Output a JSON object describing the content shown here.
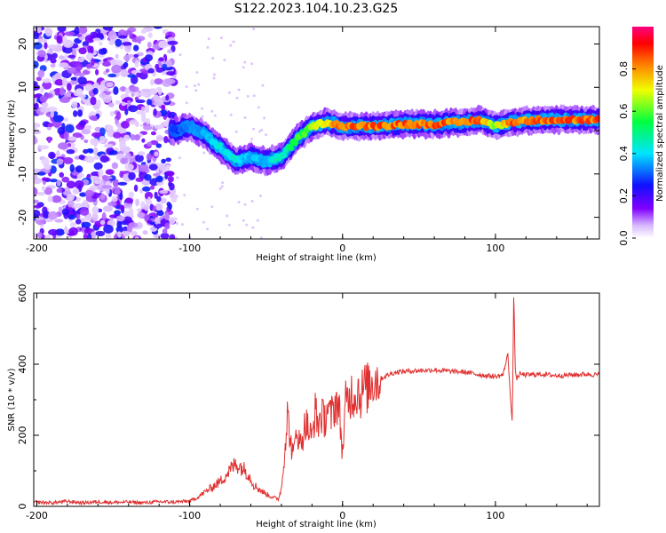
{
  "title": "S122.2023.104.10.23.G25",
  "chart_data": [
    {
      "type": "heatmap",
      "title": "S122.2023.104.10.23.G25",
      "xlabel": "Height of straight line (km)",
      "ylabel": "Frequency (Hz)",
      "xlim": [
        -202,
        168
      ],
      "ylim": [
        -25,
        24
      ],
      "xticks": [
        "-200",
        "-100",
        "0",
        "100"
      ],
      "xtick_values": [
        -200,
        -100,
        0,
        100
      ],
      "yticks": [
        "-20",
        "-10",
        "0",
        "10",
        "20"
      ],
      "ytick_values": [
        -20,
        -10,
        0,
        10,
        20
      ],
      "colorbar": {
        "label": "Normalized spectral amplitude",
        "range": [
          0,
          1
        ],
        "ticks": [
          "0.0",
          "0.2",
          "0.4",
          "0.6",
          "0.8"
        ],
        "tick_values": [
          0,
          0.2,
          0.4,
          0.6,
          0.8
        ],
        "colormap": "rainbow (white-violet-blue-cyan-green-yellow-red-pink)"
      },
      "noise_region_x": [
        -202,
        -110
      ],
      "ridge": {
        "x": [
          -110,
          -100,
          -90,
          -80,
          -70,
          -60,
          -50,
          -40,
          -30,
          -20,
          -10,
          0,
          20,
          40,
          60,
          80,
          90,
          100,
          110,
          130,
          150,
          168
        ],
        "y": [
          0,
          1,
          -1,
          -4,
          -7,
          -6,
          -7,
          -6,
          -2,
          1,
          2,
          1,
          1,
          1.5,
          1.5,
          2,
          2.5,
          1,
          2,
          2.5,
          2.5,
          2.5
        ],
        "amplitude": [
          0.3,
          0.35,
          0.4,
          0.45,
          0.45,
          0.4,
          0.4,
          0.5,
          0.6,
          0.7,
          0.8,
          0.9,
          0.9,
          0.9,
          0.9,
          0.9,
          0.9,
          0.7,
          0.9,
          0.9,
          0.9,
          0.9
        ]
      }
    },
    {
      "type": "line",
      "xlabel": "Height of straight line (km)",
      "ylabel": "SNR (10 * v/v)",
      "xlim": [
        -202,
        168
      ],
      "ylim": [
        0,
        600
      ],
      "xticks": [
        "-200",
        "-100",
        "0",
        "100"
      ],
      "xtick_values": [
        -200,
        -100,
        0,
        100
      ],
      "yticks": [
        "0",
        "200",
        "400",
        "600"
      ],
      "ytick_values": [
        0,
        200,
        400,
        600
      ],
      "color": "#e03030",
      "series": [
        {
          "x": [
            -202,
            -190,
            -180,
            -170,
            -160,
            -150,
            -140,
            -130,
            -120,
            -110,
            -100,
            -95,
            -90,
            -85,
            -80,
            -75,
            -70,
            -66,
            -62,
            -58,
            -55,
            -52,
            -48,
            -45,
            -42,
            -40,
            -38,
            -36,
            -34,
            -32,
            -30,
            -28,
            -26,
            -24,
            -22,
            -20,
            -18,
            -16,
            -14,
            -12,
            -10,
            -8,
            -6,
            -4,
            -2,
            0,
            2,
            4,
            6,
            8,
            10,
            12,
            14,
            16,
            18,
            20,
            25,
            30,
            35,
            40,
            50,
            60,
            70,
            80,
            90,
            100,
            105,
            108,
            110,
            111,
            112,
            113,
            114,
            116,
            120,
            130,
            140,
            150,
            160,
            168
          ],
          "y": [
            12,
            10,
            14,
            10,
            13,
            11,
            12,
            10,
            13,
            12,
            15,
            25,
            40,
            55,
            70,
            95,
            120,
            110,
            95,
            60,
            50,
            40,
            30,
            25,
            20,
            50,
            150,
            260,
            180,
            140,
            230,
            170,
            200,
            240,
            210,
            190,
            270,
            230,
            260,
            240,
            280,
            250,
            270,
            300,
            260,
            150,
            290,
            300,
            320,
            310,
            330,
            310,
            340,
            330,
            350,
            355,
            360,
            370,
            378,
            380,
            382,
            384,
            380,
            378,
            370,
            365,
            370,
            430,
            300,
            230,
            600,
            380,
            360,
            372,
            370,
            372,
            368,
            370,
            372,
            370
          ]
        }
      ]
    }
  ]
}
